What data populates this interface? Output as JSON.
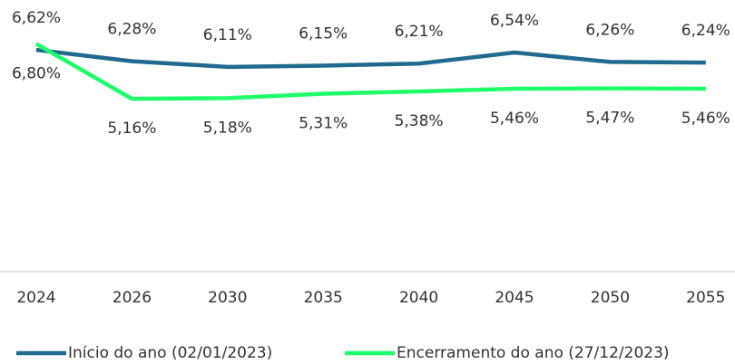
{
  "chart_data": {
    "type": "line",
    "categories": [
      "2024",
      "2026",
      "2030",
      "2035",
      "2040",
      "2045",
      "2050",
      "2055"
    ],
    "series": [
      {
        "name": "Início do ano (02/01/2023)",
        "color": "#1f6a8e",
        "values": [
          6.62,
          6.28,
          6.11,
          6.15,
          6.21,
          6.54,
          6.26,
          6.24
        ],
        "value_labels": [
          "6,62%",
          "6,28%",
          "6,11%",
          "6,15%",
          "6,21%",
          "6,54%",
          "6,26%",
          "6,24%"
        ]
      },
      {
        "name": "Encerramento do ano (27/12/2023)",
        "color": "#1eff6a",
        "values": [
          6.8,
          5.16,
          5.18,
          5.31,
          5.38,
          5.46,
          5.47,
          5.46
        ],
        "value_labels": [
          "6,80%",
          "5,16%",
          "5,18%",
          "5,31%",
          "5,38%",
          "5,46%",
          "5,47%",
          "5,46%"
        ]
      }
    ],
    "ylim": [
      0,
      8
    ],
    "legend": "bottom"
  }
}
